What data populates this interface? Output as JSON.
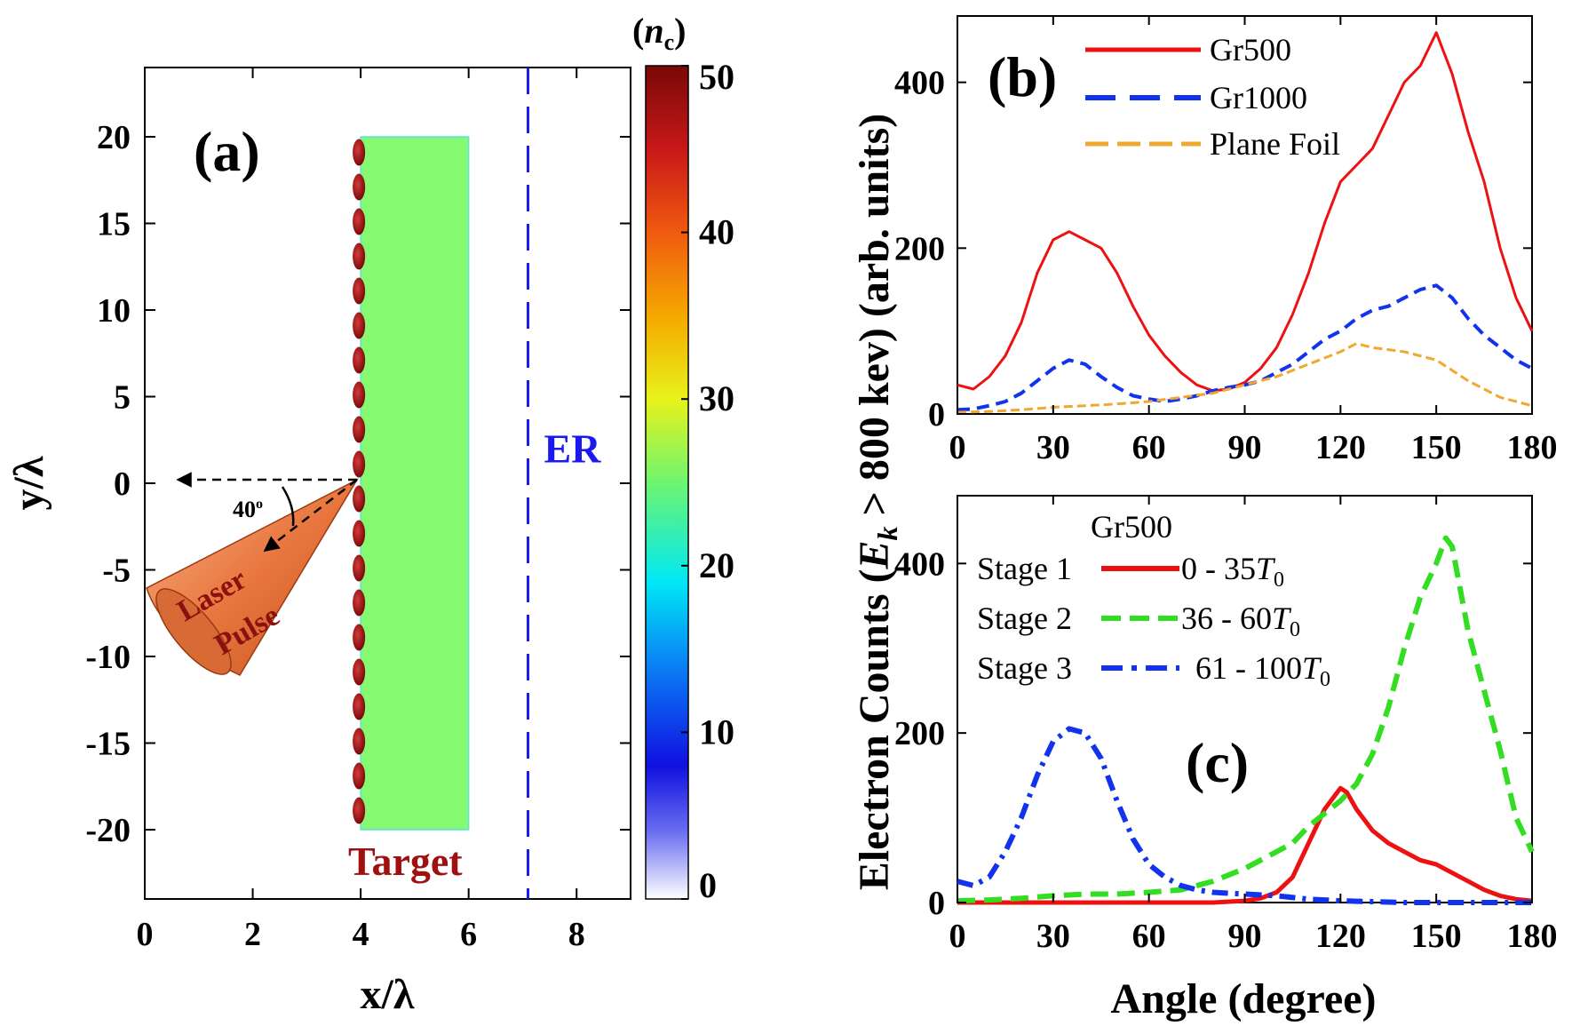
{
  "chart_data": [
    {
      "id": "a",
      "type": "heatmap",
      "panel_label": "(a)",
      "xlabel": "x/λ",
      "ylabel": "y/λ",
      "xlim": [
        0,
        9
      ],
      "ylim": [
        -24,
        24
      ],
      "xticks": [
        "0",
        "2",
        "4",
        "6",
        "8"
      ],
      "xtick_values": [
        0,
        2,
        4,
        6,
        8
      ],
      "yticks": [
        "20",
        "15",
        "10",
        "5",
        "0",
        "-5",
        "-10",
        "-15",
        "-20"
      ],
      "ytick_values": [
        20,
        15,
        10,
        5,
        0,
        -5,
        -10,
        -15,
        -20
      ],
      "target": {
        "x": [
          4,
          6
        ],
        "y": [
          -20,
          20
        ],
        "density": 25,
        "label": "Target"
      },
      "grating_x": 4,
      "er_line_x": 7.1,
      "er_label": "ER",
      "laser": {
        "label_line1": "Laser",
        "label_line2": "Pulse",
        "angle_label": "40",
        "angle_unit": "o",
        "angle_deg": 40,
        "origin": [
          4,
          0
        ]
      },
      "colorbar": {
        "title_base": "n",
        "title_sub": "c",
        "min": 0,
        "max": 50,
        "ticks": [
          "0",
          "10",
          "20",
          "30",
          "40",
          "50"
        ],
        "tick_values": [
          0,
          10,
          20,
          30,
          40,
          50
        ]
      }
    },
    {
      "id": "b",
      "type": "line",
      "panel_label": "(b)",
      "xlim": [
        0,
        180
      ],
      "ylim": [
        0,
        480
      ],
      "xticks": [
        "0",
        "30",
        "60",
        "90",
        "120",
        "150",
        "180"
      ],
      "xtick_values": [
        0,
        30,
        60,
        90,
        120,
        150,
        180
      ],
      "yticks": [
        "0",
        "200",
        "400"
      ],
      "ytick_values": [
        0,
        200,
        400
      ],
      "series": [
        {
          "name": "Gr500",
          "color": "#ee1111",
          "style": "solid",
          "x": [
            0,
            5,
            10,
            15,
            20,
            25,
            30,
            35,
            40,
            45,
            50,
            55,
            60,
            65,
            70,
            75,
            80,
            85,
            90,
            95,
            100,
            105,
            110,
            115,
            120,
            125,
            130,
            135,
            140,
            145,
            150,
            155,
            160,
            165,
            170,
            175,
            180
          ],
          "values": [
            35,
            30,
            45,
            70,
            110,
            170,
            210,
            220,
            210,
            200,
            170,
            130,
            95,
            70,
            50,
            35,
            28,
            30,
            38,
            55,
            80,
            120,
            170,
            230,
            280,
            300,
            320,
            360,
            400,
            420,
            460,
            410,
            340,
            280,
            200,
            140,
            100
          ]
        },
        {
          "name": "Gr1000",
          "color": "#1133ee",
          "style": "dashed",
          "x": [
            0,
            5,
            10,
            15,
            20,
            25,
            30,
            35,
            40,
            45,
            50,
            55,
            60,
            65,
            70,
            75,
            80,
            85,
            90,
            95,
            100,
            105,
            110,
            115,
            120,
            125,
            130,
            135,
            140,
            145,
            150,
            155,
            160,
            165,
            170,
            175,
            180
          ],
          "values": [
            5,
            6,
            10,
            15,
            25,
            40,
            55,
            65,
            60,
            45,
            32,
            22,
            18,
            15,
            18,
            22,
            28,
            32,
            35,
            40,
            50,
            60,
            75,
            90,
            100,
            115,
            125,
            130,
            140,
            150,
            155,
            140,
            115,
            95,
            80,
            65,
            55
          ]
        },
        {
          "name": "Plane Foil",
          "color": "#f0a830",
          "style": "dashed",
          "x": [
            0,
            10,
            20,
            30,
            40,
            50,
            60,
            70,
            80,
            90,
            100,
            110,
            120,
            125,
            130,
            140,
            150,
            160,
            170,
            180
          ],
          "values": [
            2,
            3,
            5,
            8,
            10,
            12,
            15,
            20,
            25,
            35,
            45,
            60,
            75,
            85,
            80,
            75,
            65,
            40,
            20,
            10
          ]
        }
      ]
    },
    {
      "id": "c",
      "type": "line",
      "panel_label": "(c)",
      "xlabel": "Angle (degree)",
      "ylabel_parts": [
        "Electron Counts (",
        "E",
        "k",
        " > 800 kev) (arb. units)"
      ],
      "xlim": [
        0,
        180
      ],
      "ylim": [
        0,
        480
      ],
      "xticks": [
        "0",
        "30",
        "60",
        "90",
        "120",
        "150",
        "180"
      ],
      "xtick_values": [
        0,
        30,
        60,
        90,
        120,
        150,
        180
      ],
      "yticks": [
        "0",
        "200",
        "400"
      ],
      "ytick_values": [
        0,
        200,
        400
      ],
      "legend_title": "Gr500",
      "series": [
        {
          "name": "Stage 1",
          "range_label": "0 - 35",
          "unit": "T",
          "unit_sub": "0",
          "color": "#ee1111",
          "style": "solid",
          "x": [
            0,
            10,
            20,
            30,
            40,
            50,
            60,
            70,
            80,
            90,
            95,
            100,
            105,
            110,
            115,
            120,
            122,
            125,
            130,
            135,
            140,
            145,
            150,
            155,
            160,
            165,
            170,
            175,
            180
          ],
          "values": [
            0,
            0,
            0,
            0,
            0,
            0,
            0,
            0,
            0,
            2,
            5,
            12,
            30,
            70,
            110,
            135,
            130,
            110,
            85,
            70,
            60,
            50,
            45,
            35,
            25,
            15,
            8,
            4,
            2
          ]
        },
        {
          "name": "Stage 2",
          "range_label": "36 - 60",
          "unit": "T",
          "unit_sub": "0",
          "color": "#33dd22",
          "style": "dashed",
          "x": [
            0,
            10,
            20,
            30,
            40,
            50,
            60,
            70,
            80,
            90,
            100,
            105,
            110,
            115,
            120,
            125,
            130,
            135,
            140,
            145,
            150,
            153,
            155,
            160,
            165,
            170,
            175,
            180
          ],
          "values": [
            2,
            3,
            5,
            8,
            10,
            10,
            12,
            15,
            25,
            40,
            60,
            70,
            90,
            105,
            120,
            140,
            175,
            230,
            300,
            360,
            400,
            430,
            420,
            320,
            250,
            180,
            100,
            60
          ]
        },
        {
          "name": "Stage 3",
          "range_label": "61 - 100",
          "unit": "T",
          "unit_sub": "0",
          "color": "#1133ee",
          "style": "dashdot",
          "x": [
            0,
            5,
            10,
            15,
            20,
            25,
            30,
            35,
            40,
            45,
            50,
            55,
            60,
            65,
            70,
            75,
            80,
            90,
            100,
            110,
            120,
            130,
            140,
            150,
            160,
            170,
            180
          ],
          "values": [
            25,
            20,
            30,
            60,
            100,
            150,
            190,
            205,
            200,
            170,
            120,
            75,
            45,
            30,
            20,
            15,
            12,
            10,
            8,
            4,
            2,
            1,
            0,
            0,
            0,
            0,
            0
          ]
        }
      ]
    }
  ]
}
